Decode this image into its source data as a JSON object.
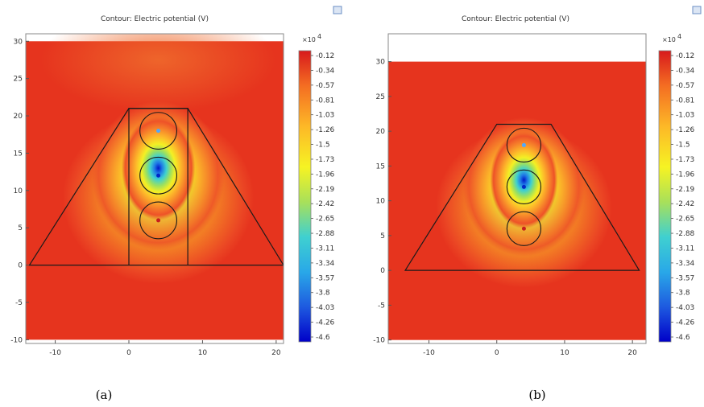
{
  "chart_data": [
    {
      "type": "heatmap",
      "panel_label": "(a)",
      "title": "Contour: Electric potential (V)",
      "colorbar_unit": "×10",
      "colorbar_exp": "4",
      "xlim": [
        -14,
        21
      ],
      "ylim": [
        -10.5,
        31
      ],
      "x_ticks": [
        -10,
        0,
        10,
        20
      ],
      "y_ticks": [
        -10,
        -5,
        0,
        5,
        10,
        15,
        20,
        25,
        30
      ],
      "levels": [
        "-0.12",
        "-0.34",
        "-0.57",
        "-0.81",
        "-1.03",
        "-1.26",
        "-1.5",
        "-1.73",
        "-1.96",
        "-2.19",
        "-2.42",
        "-2.65",
        "-2.88",
        "-3.11",
        "-3.34",
        "-3.57",
        "-3.8",
        "-4.03",
        "-4.26",
        "-4.6"
      ],
      "domain_top": 30,
      "domain_bottom": -10,
      "trapezoid": [
        [
          -13.5,
          0
        ],
        [
          0,
          21
        ],
        [
          8,
          21
        ],
        [
          21,
          0
        ]
      ],
      "inner_rect": [
        [
          0,
          0
        ],
        [
          0,
          21
        ],
        [
          8,
          21
        ],
        [
          8,
          0
        ]
      ],
      "conductors": [
        {
          "cx": 4,
          "cy": 18,
          "r": 2.5,
          "dot": "#4fa8ff"
        },
        {
          "cx": 4,
          "cy": 12,
          "r": 2.5,
          "dot": "#0028c8"
        },
        {
          "cx": 4,
          "cy": 6,
          "r": 2.5,
          "dot": "#c81e1e"
        }
      ]
    },
    {
      "type": "heatmap",
      "panel_label": "(b)",
      "title": "Contour: Electric potential (V)",
      "colorbar_unit": "×10",
      "colorbar_exp": "4",
      "xlim": [
        -16,
        22
      ],
      "ylim": [
        -10.5,
        34
      ],
      "x_ticks": [
        -10,
        0,
        10,
        20
      ],
      "y_ticks": [
        -10,
        -5,
        0,
        5,
        10,
        15,
        20,
        25,
        30
      ],
      "levels": [
        "-0.12",
        "-0.34",
        "-0.57",
        "-0.81",
        "-1.03",
        "-1.26",
        "-1.5",
        "-1.73",
        "-1.96",
        "-2.19",
        "-2.42",
        "-2.65",
        "-2.88",
        "-3.11",
        "-3.34",
        "-3.57",
        "-3.8",
        "-4.03",
        "-4.26",
        "-4.6"
      ],
      "domain_top": 30,
      "domain_bottom": -10,
      "trapezoid": [
        [
          -13.5,
          0
        ],
        [
          0,
          21
        ],
        [
          8,
          21
        ],
        [
          21,
          0
        ]
      ],
      "inner_rect": null,
      "conductors": [
        {
          "cx": 4,
          "cy": 18,
          "r": 2.5,
          "dot": "#4fa8ff"
        },
        {
          "cx": 4,
          "cy": 12,
          "r": 2.5,
          "dot": "#0028c8"
        },
        {
          "cx": 4,
          "cy": 6,
          "r": 2.5,
          "dot": "#c81e1e"
        }
      ]
    }
  ]
}
